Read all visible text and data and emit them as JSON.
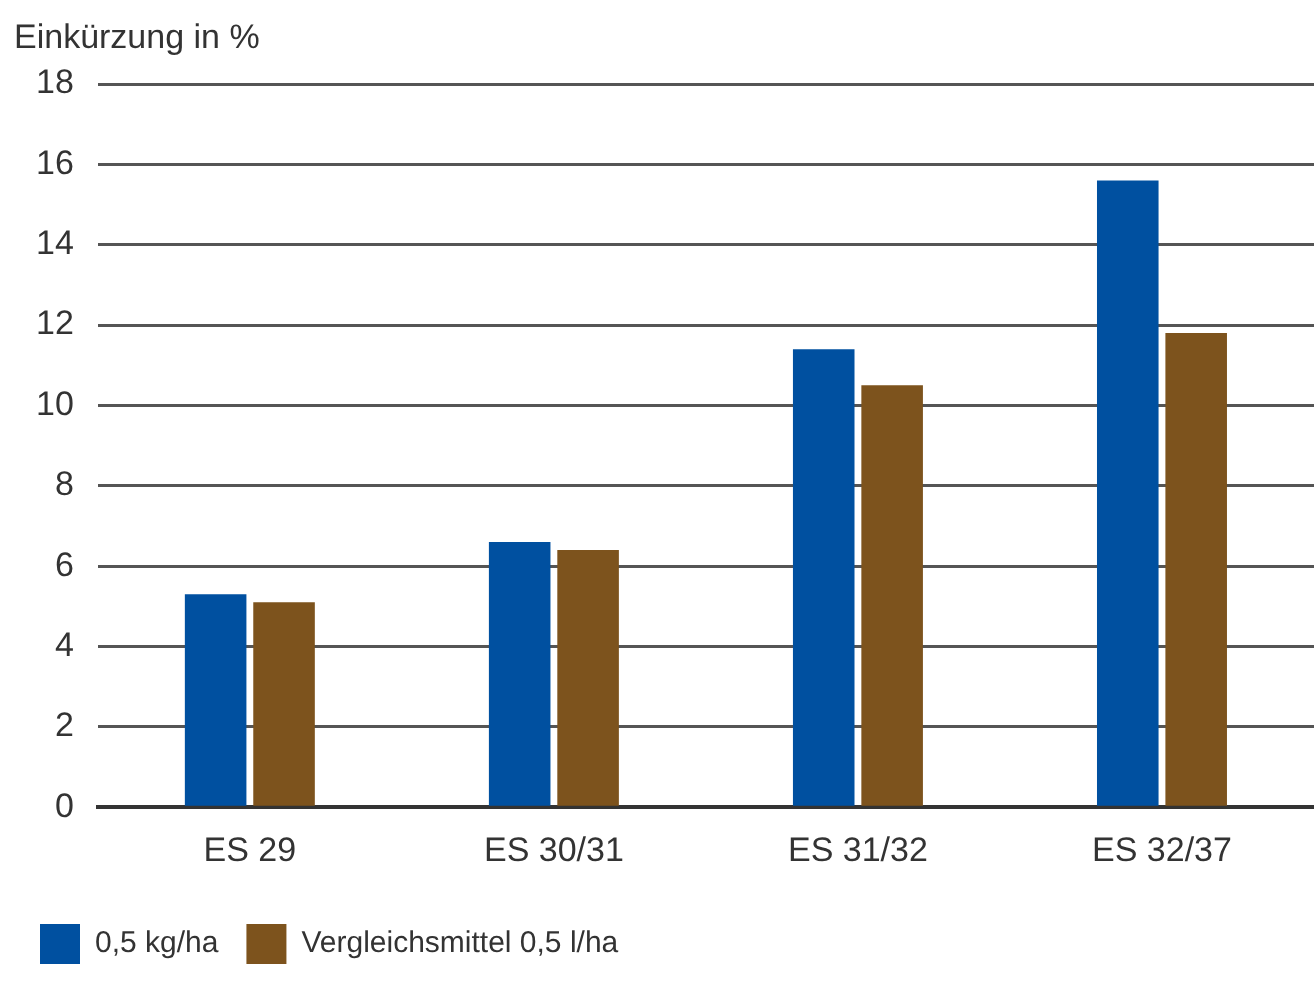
{
  "chart_data": {
    "type": "bar",
    "ylabel": "Einkürzung in %",
    "categories": [
      "ES 29",
      "ES 30/31",
      "ES 31/32",
      "ES 32/37"
    ],
    "series": [
      {
        "name": "0,5 kg/ha",
        "color": "#0050a0",
        "values": [
          5.3,
          6.6,
          11.4,
          15.6
        ]
      },
      {
        "name": "Vergleichsmittel 0,5 l/ha",
        "color": "#7d531d",
        "values": [
          5.1,
          6.4,
          10.5,
          11.8
        ]
      }
    ],
    "ylim": [
      0,
      18
    ],
    "yticks": [
      0,
      2,
      4,
      6,
      8,
      10,
      12,
      14,
      16,
      18
    ],
    "grid": "y",
    "legend": "bottom left"
  }
}
